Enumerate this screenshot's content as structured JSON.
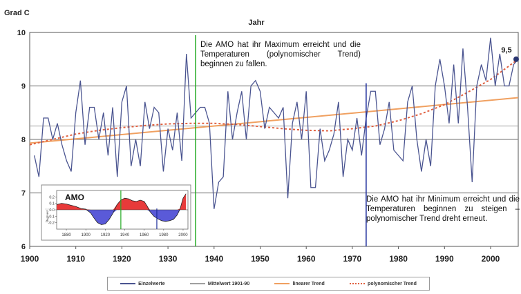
{
  "chart_data": {
    "type": "line",
    "xlabel": "Jahr",
    "ylabel": "Grad C",
    "xlim": [
      1900,
      2006
    ],
    "ylim": [
      6,
      10
    ],
    "x_ticks": [
      1900,
      1910,
      1920,
      1930,
      1940,
      1950,
      1960,
      1970,
      1980,
      1990,
      2000
    ],
    "y_ticks": [
      6,
      7,
      8,
      9,
      10
    ],
    "grid": "horizontal",
    "legend_position": "bottom",
    "colors": {
      "einzelwerte": "#4a5490",
      "mittelwert": "#999999",
      "linear": "#f0a060",
      "polynom": "#e06040",
      "max_marker": "#22aa22",
      "min_marker": "#1a2a9a",
      "endpoint": "#2a3570"
    },
    "series": [
      {
        "name": "Einzelwerte",
        "x": [
          1901,
          1902,
          1903,
          1904,
          1905,
          1906,
          1907,
          1908,
          1909,
          1910,
          1911,
          1912,
          1913,
          1914,
          1915,
          1916,
          1917,
          1918,
          1919,
          1920,
          1921,
          1922,
          1923,
          1924,
          1925,
          1926,
          1927,
          1928,
          1929,
          1930,
          1931,
          1932,
          1933,
          1934,
          1935,
          1936,
          1937,
          1938,
          1939,
          1940,
          1941,
          1942,
          1943,
          1944,
          1945,
          1946,
          1947,
          1948,
          1949,
          1950,
          1951,
          1952,
          1953,
          1954,
          1955,
          1956,
          1957,
          1958,
          1959,
          1960,
          1961,
          1962,
          1963,
          1964,
          1965,
          1966,
          1967,
          1968,
          1969,
          1970,
          1971,
          1972,
          1973,
          1974,
          1975,
          1976,
          1977,
          1978,
          1979,
          1980,
          1981,
          1982,
          1983,
          1984,
          1985,
          1986,
          1987,
          1988,
          1989,
          1990,
          1991,
          1992,
          1993,
          1994,
          1995,
          1996,
          1997,
          1998,
          1999,
          2000,
          2001,
          2002,
          2003,
          2004,
          2005,
          2006
        ],
        "values": [
          7.7,
          7.3,
          8.4,
          8.4,
          8.0,
          8.3,
          7.9,
          7.6,
          7.4,
          8.5,
          9.1,
          7.9,
          8.6,
          8.6,
          8.0,
          8.5,
          7.7,
          8.6,
          7.3,
          8.7,
          9.0,
          7.5,
          8.0,
          7.5,
          8.7,
          8.2,
          8.6,
          8.5,
          7.4,
          8.2,
          7.8,
          8.5,
          7.6,
          9.6,
          8.4,
          8.5,
          8.6,
          8.6,
          8.3,
          6.7,
          7.2,
          7.3,
          8.9,
          8.0,
          8.5,
          8.9,
          8.0,
          9.0,
          9.1,
          8.9,
          8.2,
          8.6,
          8.5,
          8.4,
          8.6,
          6.9,
          8.3,
          8.7,
          8.0,
          8.9,
          7.1,
          7.1,
          8.2,
          7.6,
          7.8,
          8.1,
          8.7,
          7.3,
          8.0,
          7.8,
          8.4,
          7.7,
          8.4,
          8.9,
          8.9,
          7.9,
          8.2,
          8.7,
          7.8,
          7.7,
          7.6,
          8.7,
          9.0,
          8.0,
          7.4,
          8.0,
          7.5,
          9.0,
          9.5,
          9.0,
          8.3,
          9.4,
          8.3,
          9.7,
          8.6,
          7.2,
          9.0,
          9.4,
          9.1,
          9.9,
          9.0,
          9.6,
          9.0,
          9.0,
          9.4,
          9.5
        ]
      },
      {
        "name": "Mittelwert 1901-90",
        "value": 8.25
      },
      {
        "name": "linearer Trend",
        "x": [
          1900,
          2006
        ],
        "values": [
          7.93,
          8.78
        ]
      },
      {
        "name": "polynomischer Trend",
        "x": [
          1900,
          1905,
          1910,
          1915,
          1920,
          1925,
          1930,
          1935,
          1940,
          1945,
          1950,
          1955,
          1960,
          1965,
          1970,
          1975,
          1980,
          1985,
          1990,
          1995,
          2000,
          2006
        ],
        "values": [
          7.9,
          8.0,
          8.1,
          8.17,
          8.22,
          8.26,
          8.29,
          8.3,
          8.3,
          8.28,
          8.24,
          8.2,
          8.17,
          8.16,
          8.2,
          8.25,
          8.35,
          8.48,
          8.65,
          8.88,
          9.12,
          9.5
        ]
      }
    ],
    "annotations": {
      "maximum": {
        "year": 1936,
        "text": "Die AMO hat ihr Maximum erreicht und die Temperaturen (polynomischer Trend) beginnen zu fallen."
      },
      "minimum": {
        "year": 1973,
        "text": "Die AMO hat ihr Minimum erreicht und die Temperaturen beginnen zu steigen – polynomischer Trend dreht erneut."
      },
      "endpoint": {
        "year": 2006,
        "value": 9.5,
        "label": "9,5"
      }
    },
    "inset": {
      "title": "AMO",
      "ylabel": "Degrees C",
      "xlim": [
        1870,
        2005
      ],
      "ylim": [
        -0.3,
        0.3
      ],
      "y_ticks": [
        "0.2",
        "0.1",
        "0.0",
        "-0.1",
        "-0.2"
      ],
      "x_ticks": [
        "1880",
        "1900",
        "1920",
        "1940",
        "1960",
        "1980",
        "2000"
      ],
      "positive_color": "#e83a3a",
      "negative_color": "#5a5ad8",
      "marker_max_year": 1936,
      "marker_min_year": 1973,
      "x": [
        1870,
        1875,
        1880,
        1885,
        1890,
        1895,
        1900,
        1905,
        1908,
        1912,
        1916,
        1920,
        1924,
        1928,
        1932,
        1936,
        1940,
        1944,
        1948,
        1952,
        1956,
        1960,
        1963,
        1966,
        1970,
        1974,
        1978,
        1982,
        1986,
        1990,
        1994,
        1997,
        2000,
        2003
      ],
      "values": [
        0.08,
        0.1,
        0.09,
        0.07,
        0.05,
        0.02,
        0.01,
        -0.05,
        -0.12,
        -0.2,
        -0.23,
        -0.22,
        -0.15,
        -0.05,
        0.08,
        0.15,
        0.18,
        0.17,
        0.14,
        0.13,
        0.15,
        0.13,
        0.06,
        -0.03,
        -0.1,
        -0.14,
        -0.17,
        -0.18,
        -0.17,
        -0.15,
        -0.08,
        0.02,
        0.18,
        0.25
      ]
    }
  }
}
